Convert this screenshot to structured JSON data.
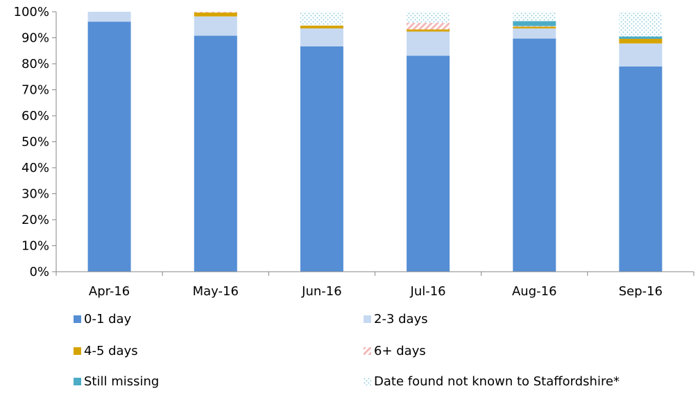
{
  "chart_data": {
    "type": "bar",
    "stacked": true,
    "categories": [
      "Apr-16",
      "May-16",
      "Jun-16",
      "Jul-16",
      "Aug-16",
      "Sep-16"
    ],
    "ylim": [
      0,
      100
    ],
    "yticks": [
      "0%",
      "10%",
      "20%",
      "30%",
      "40%",
      "50%",
      "60%",
      "70%",
      "80%",
      "90%",
      "100%"
    ],
    "grid": false,
    "legend_position": "bottom",
    "series": [
      {
        "name": "0-1 day",
        "values": [
          96.2,
          90.8,
          86.7,
          83.1,
          89.7,
          79.0
        ],
        "color": "#558ed5",
        "pattern": "solid"
      },
      {
        "name": "2-3 days",
        "values": [
          3.8,
          7.4,
          6.9,
          9.3,
          3.9,
          8.8
        ],
        "color": "#c6d9f1",
        "pattern": "solid"
      },
      {
        "name": "4-5 days",
        "values": [
          0.0,
          1.5,
          1.1,
          0.8,
          0.7,
          1.8
        ],
        "color": "#d6a400",
        "pattern": "solid"
      },
      {
        "name": "6+ days",
        "values": [
          0.0,
          0.3,
          0.0,
          2.6,
          0.2,
          0.0
        ],
        "color": "#f4a3a3",
        "pattern": "hatch"
      },
      {
        "name": "Still missing",
        "values": [
          0.0,
          0.0,
          0.0,
          0.0,
          1.9,
          0.9
        ],
        "color": "#4bacc6",
        "pattern": "solid"
      },
      {
        "name": "Date found not known to Staffordshire*",
        "values": [
          0.0,
          0.0,
          5.3,
          4.2,
          3.6,
          9.5
        ],
        "color": "#92cddc",
        "pattern": "dots"
      }
    ]
  }
}
